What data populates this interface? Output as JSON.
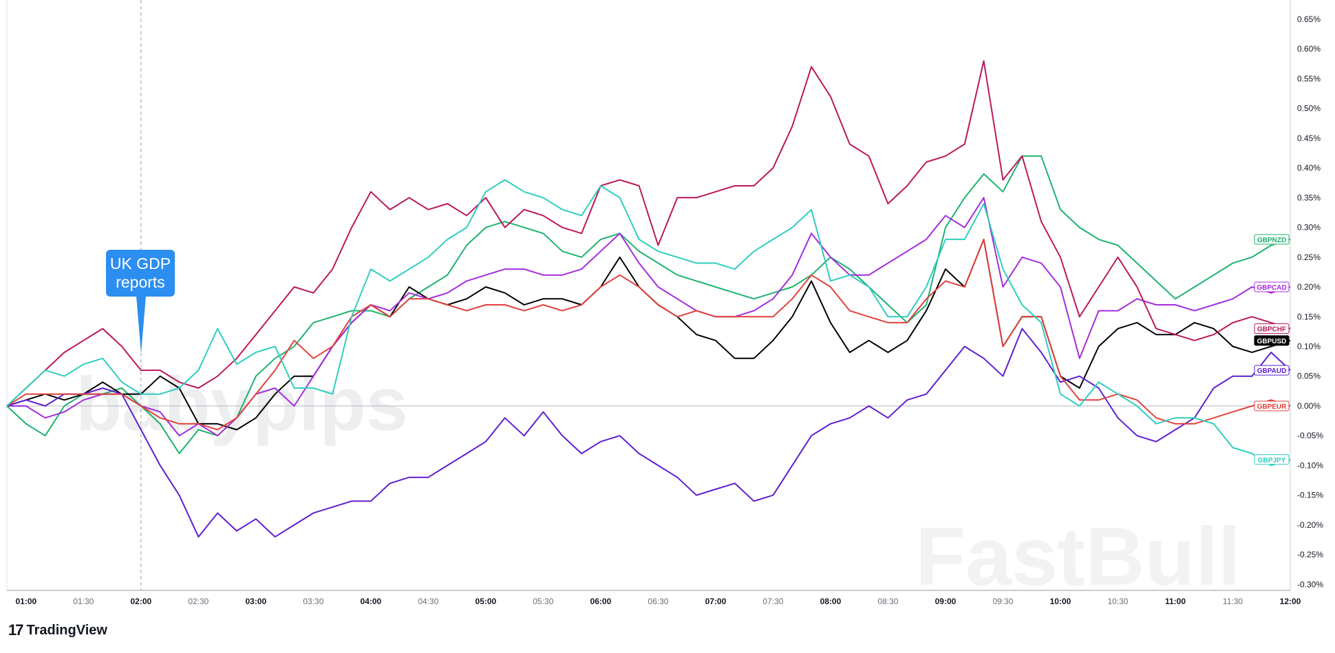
{
  "brand": {
    "name": "TradingView",
    "logo_icon": "tradingview-logo-icon"
  },
  "watermarks": {
    "top": "babypips",
    "bottom": "FastBull"
  },
  "annotation": {
    "lines": [
      "UK GDP",
      "reports"
    ],
    "color": "#2b8ef0"
  },
  "chart_data": {
    "type": "line",
    "x_ticks": [
      "01:00",
      "01:30",
      "02:00",
      "02:30",
      "03:00",
      "03:30",
      "04:00",
      "04:30",
      "05:00",
      "05:30",
      "06:00",
      "06:30",
      "07:00",
      "07:30",
      "08:00",
      "08:30",
      "09:00",
      "09:30",
      "10:00",
      "10:30",
      "11:00",
      "11:30",
      "12:00"
    ],
    "y_ticks": [
      "0.65%",
      "0.60%",
      "0.55%",
      "0.50%",
      "0.45%",
      "0.40%",
      "0.35%",
      "0.30%",
      "0.25%",
      "0.20%",
      "0.15%",
      "0.10%",
      "0.05%",
      "0.00%",
      "-0.05%",
      "-0.10%",
      "-0.15%",
      "-0.20%",
      "-0.25%",
      "-0.30%"
    ],
    "x_range": [
      "00:50",
      "12:00"
    ],
    "ylim": [
      -0.31,
      0.68
    ],
    "event_x": "02:00",
    "series": [
      {
        "name": "GBPNZD",
        "color": "#1db26e",
        "x": [
          "00:50",
          "01:00",
          "01:10",
          "01:20",
          "01:30",
          "01:40",
          "01:50",
          "02:00",
          "02:10",
          "02:20",
          "02:30",
          "02:40",
          "02:50",
          "03:00",
          "03:10",
          "03:20",
          "03:30",
          "03:40",
          "03:50",
          "04:00",
          "04:10",
          "04:20",
          "04:30",
          "04:40",
          "04:50",
          "05:00",
          "05:10",
          "05:20",
          "05:30",
          "05:40",
          "05:50",
          "06:00",
          "06:10",
          "06:20",
          "06:30",
          "06:40",
          "06:50",
          "07:00",
          "07:10",
          "07:20",
          "07:30",
          "07:40",
          "07:50",
          "08:00",
          "08:10",
          "08:20",
          "08:30",
          "08:40",
          "08:50",
          "09:00",
          "09:10",
          "09:20",
          "09:30",
          "09:40",
          "09:50",
          "10:00",
          "10:10",
          "10:20",
          "10:30",
          "10:40",
          "10:50",
          "11:00",
          "11:10",
          "11:20",
          "11:30",
          "11:40",
          "11:50",
          "12:00"
        ],
        "y": [
          0.0,
          -0.03,
          -0.05,
          0.0,
          0.02,
          0.02,
          0.03,
          0.0,
          -0.03,
          -0.08,
          -0.04,
          -0.05,
          -0.02,
          0.05,
          0.08,
          0.1,
          0.14,
          0.15,
          0.16,
          0.16,
          0.15,
          0.18,
          0.2,
          0.22,
          0.27,
          0.3,
          0.31,
          0.3,
          0.29,
          0.26,
          0.25,
          0.28,
          0.29,
          0.26,
          0.24,
          0.22,
          0.21,
          0.2,
          0.19,
          0.18,
          0.19,
          0.2,
          0.22,
          0.25,
          0.23,
          0.2,
          0.17,
          0.14,
          0.17,
          0.3,
          0.35,
          0.39,
          0.36,
          0.42,
          0.42,
          0.33,
          0.3,
          0.28,
          0.27,
          0.24,
          0.21,
          0.18,
          0.2,
          0.22,
          0.24,
          0.25,
          0.27,
          0.28
        ]
      },
      {
        "name": "GBPUSD",
        "color": "#000000",
        "x": [
          "00:50",
          "01:00",
          "01:10",
          "01:20",
          "01:30",
          "01:40",
          "01:50",
          "02:00",
          "02:10",
          "02:20",
          "02:30",
          "02:40",
          "02:50",
          "03:00",
          "03:10",
          "03:20",
          "03:30",
          "03:40",
          "03:50",
          "04:00",
          "04:10",
          "04:20",
          "04:30",
          "04:40",
          "04:50",
          "05:00",
          "05:10",
          "05:20",
          "05:30",
          "05:40",
          "05:50",
          "06:00",
          "06:10",
          "06:20",
          "06:30",
          "06:40",
          "06:50",
          "07:00",
          "07:10",
          "07:20",
          "07:30",
          "07:40",
          "07:50",
          "08:00",
          "08:10",
          "08:20",
          "08:30",
          "08:40",
          "08:50",
          "09:00",
          "09:10",
          "09:20",
          "09:30",
          "09:40",
          "09:50",
          "10:00",
          "10:10",
          "10:20",
          "10:30",
          "10:40",
          "10:50",
          "11:00",
          "11:10",
          "11:20",
          "11:30",
          "11:40",
          "11:50",
          "12:00"
        ],
        "y": [
          0.0,
          0.01,
          0.02,
          0.01,
          0.02,
          0.04,
          0.02,
          0.02,
          0.05,
          0.03,
          -0.03,
          -0.03,
          -0.04,
          -0.02,
          0.02,
          0.05,
          0.05,
          0.1,
          0.14,
          0.17,
          0.15,
          0.2,
          0.18,
          0.17,
          0.18,
          0.2,
          0.19,
          0.17,
          0.18,
          0.18,
          0.17,
          0.2,
          0.25,
          0.2,
          0.17,
          0.15,
          0.12,
          0.11,
          0.08,
          0.08,
          0.11,
          0.15,
          0.21,
          0.14,
          0.09,
          0.11,
          0.09,
          0.11,
          0.16,
          0.23,
          0.2,
          0.28,
          0.1,
          0.15,
          0.15,
          0.05,
          0.03,
          0.1,
          0.13,
          0.14,
          0.12,
          0.12,
          0.14,
          0.13,
          0.1,
          0.09,
          0.1,
          0.11
        ]
      },
      {
        "name": "GBPCAD",
        "color": "#a32cdc",
        "x": [
          "00:50",
          "01:00",
          "01:10",
          "01:20",
          "01:30",
          "01:40",
          "01:50",
          "02:00",
          "02:10",
          "02:20",
          "02:30",
          "02:40",
          "02:50",
          "03:00",
          "03:10",
          "03:20",
          "03:30",
          "03:40",
          "03:50",
          "04:00",
          "04:10",
          "04:20",
          "04:30",
          "04:40",
          "04:50",
          "05:00",
          "05:10",
          "05:20",
          "05:30",
          "05:40",
          "05:50",
          "06:00",
          "06:10",
          "06:20",
          "06:30",
          "06:40",
          "06:50",
          "07:00",
          "07:10",
          "07:20",
          "07:30",
          "07:40",
          "07:50",
          "08:00",
          "08:10",
          "08:20",
          "08:30",
          "08:40",
          "08:50",
          "09:00",
          "09:10",
          "09:20",
          "09:30",
          "09:40",
          "09:50",
          "10:00",
          "10:10",
          "10:20",
          "10:30",
          "10:40",
          "10:50",
          "11:00",
          "11:10",
          "11:20",
          "11:30",
          "11:40",
          "11:50",
          "12:00"
        ],
        "y": [
          0.0,
          0.0,
          -0.02,
          -0.01,
          0.01,
          0.02,
          0.02,
          0.0,
          -0.01,
          -0.05,
          -0.03,
          -0.05,
          -0.02,
          0.02,
          0.03,
          0.0,
          0.05,
          0.1,
          0.14,
          0.17,
          0.16,
          0.19,
          0.18,
          0.19,
          0.21,
          0.22,
          0.23,
          0.23,
          0.22,
          0.22,
          0.23,
          0.26,
          0.29,
          0.24,
          0.2,
          0.18,
          0.16,
          0.15,
          0.15,
          0.16,
          0.18,
          0.22,
          0.29,
          0.25,
          0.22,
          0.22,
          0.24,
          0.26,
          0.28,
          0.32,
          0.3,
          0.35,
          0.2,
          0.25,
          0.24,
          0.2,
          0.08,
          0.16,
          0.16,
          0.18,
          0.17,
          0.17,
          0.16,
          0.17,
          0.18,
          0.2,
          0.19,
          0.2
        ]
      },
      {
        "name": "GBPCHF",
        "color": "#b9175c",
        "x": [
          "00:50",
          "01:00",
          "01:10",
          "01:20",
          "01:30",
          "01:40",
          "01:50",
          "02:00",
          "02:10",
          "02:20",
          "02:30",
          "02:40",
          "02:50",
          "03:00",
          "03:10",
          "03:20",
          "03:30",
          "03:40",
          "03:50",
          "04:00",
          "04:10",
          "04:20",
          "04:30",
          "04:40",
          "04:50",
          "05:00",
          "05:10",
          "05:20",
          "05:30",
          "05:40",
          "05:50",
          "06:00",
          "06:10",
          "06:20",
          "06:30",
          "06:40",
          "06:50",
          "07:00",
          "07:10",
          "07:20",
          "07:30",
          "07:40",
          "07:50",
          "08:00",
          "08:10",
          "08:20",
          "08:30",
          "08:40",
          "08:50",
          "09:00",
          "09:10",
          "09:20",
          "09:30",
          "09:40",
          "09:50",
          "10:00",
          "10:10",
          "10:20",
          "10:30",
          "10:40",
          "10:50",
          "11:00",
          "11:10",
          "11:20",
          "11:30",
          "11:40",
          "11:50",
          "12:00"
        ],
        "y": [
          0.0,
          0.03,
          0.06,
          0.09,
          0.11,
          0.13,
          0.1,
          0.06,
          0.06,
          0.04,
          0.03,
          0.05,
          0.08,
          0.12,
          0.16,
          0.2,
          0.19,
          0.23,
          0.3,
          0.36,
          0.33,
          0.35,
          0.33,
          0.34,
          0.32,
          0.35,
          0.3,
          0.33,
          0.32,
          0.3,
          0.29,
          0.37,
          0.38,
          0.37,
          0.27,
          0.35,
          0.35,
          0.36,
          0.37,
          0.37,
          0.4,
          0.47,
          0.57,
          0.52,
          0.44,
          0.42,
          0.34,
          0.37,
          0.41,
          0.42,
          0.44,
          0.58,
          0.38,
          0.42,
          0.31,
          0.25,
          0.15,
          0.2,
          0.25,
          0.2,
          0.13,
          0.12,
          0.11,
          0.12,
          0.14,
          0.15,
          0.14,
          0.13
        ]
      },
      {
        "name": "GBPAUD",
        "color": "#5e1ed1",
        "x": [
          "00:50",
          "01:00",
          "01:10",
          "01:20",
          "01:30",
          "01:40",
          "01:50",
          "02:00",
          "02:10",
          "02:20",
          "02:30",
          "02:40",
          "02:50",
          "03:00",
          "03:10",
          "03:20",
          "03:30",
          "03:40",
          "03:50",
          "04:00",
          "04:10",
          "04:20",
          "04:30",
          "04:40",
          "04:50",
          "05:00",
          "05:10",
          "05:20",
          "05:30",
          "05:40",
          "05:50",
          "06:00",
          "06:10",
          "06:20",
          "06:30",
          "06:40",
          "06:50",
          "07:00",
          "07:10",
          "07:20",
          "07:30",
          "07:40",
          "07:50",
          "08:00",
          "08:10",
          "08:20",
          "08:30",
          "08:40",
          "08:50",
          "09:00",
          "09:10",
          "09:20",
          "09:30",
          "09:40",
          "09:50",
          "10:00",
          "10:10",
          "10:20",
          "10:30",
          "10:40",
          "10:50",
          "11:00",
          "11:10",
          "11:20",
          "11:30",
          "11:40",
          "11:50",
          "12:00"
        ],
        "y": [
          0.0,
          0.01,
          0.0,
          0.02,
          0.02,
          0.03,
          0.02,
          -0.04,
          -0.1,
          -0.15,
          -0.22,
          -0.18,
          -0.21,
          -0.19,
          -0.22,
          -0.2,
          -0.18,
          -0.17,
          -0.16,
          -0.16,
          -0.13,
          -0.12,
          -0.12,
          -0.1,
          -0.08,
          -0.06,
          -0.02,
          -0.05,
          -0.01,
          -0.05,
          -0.08,
          -0.06,
          -0.05,
          -0.08,
          -0.1,
          -0.12,
          -0.15,
          -0.14,
          -0.13,
          -0.16,
          -0.15,
          -0.1,
          -0.05,
          -0.03,
          -0.02,
          0.0,
          -0.02,
          0.01,
          0.02,
          0.06,
          0.1,
          0.08,
          0.05,
          0.13,
          0.09,
          0.04,
          0.05,
          0.03,
          -0.02,
          -0.05,
          -0.06,
          -0.04,
          -0.02,
          0.03,
          0.05,
          0.05,
          0.09,
          0.06
        ]
      },
      {
        "name": "GBPEUR",
        "color": "#e0413c",
        "x": [
          "00:50",
          "01:00",
          "01:10",
          "01:20",
          "01:30",
          "01:40",
          "01:50",
          "02:00",
          "02:10",
          "02:20",
          "02:30",
          "02:40",
          "02:50",
          "03:00",
          "03:10",
          "03:20",
          "03:30",
          "03:40",
          "03:50",
          "04:00",
          "04:10",
          "04:20",
          "04:30",
          "04:40",
          "04:50",
          "05:00",
          "05:10",
          "05:20",
          "05:30",
          "05:40",
          "05:50",
          "06:00",
          "06:10",
          "06:20",
          "06:30",
          "06:40",
          "06:50",
          "07:00",
          "07:10",
          "07:20",
          "07:30",
          "07:40",
          "07:50",
          "08:00",
          "08:10",
          "08:20",
          "08:30",
          "08:40",
          "08:50",
          "09:00",
          "09:10",
          "09:20",
          "09:30",
          "09:40",
          "09:50",
          "10:00",
          "10:10",
          "10:20",
          "10:30",
          "10:40",
          "10:50",
          "11:00",
          "11:10",
          "11:20",
          "11:30",
          "11:40",
          "11:50",
          "12:00"
        ],
        "y": [
          0.0,
          0.02,
          0.02,
          0.02,
          0.02,
          0.02,
          0.02,
          0.0,
          -0.02,
          -0.03,
          -0.03,
          -0.04,
          -0.02,
          0.02,
          0.06,
          0.11,
          0.08,
          0.1,
          0.15,
          0.17,
          0.15,
          0.18,
          0.18,
          0.17,
          0.16,
          0.17,
          0.17,
          0.16,
          0.17,
          0.16,
          0.17,
          0.2,
          0.22,
          0.2,
          0.17,
          0.15,
          0.16,
          0.15,
          0.15,
          0.15,
          0.15,
          0.18,
          0.22,
          0.2,
          0.16,
          0.15,
          0.14,
          0.14,
          0.18,
          0.21,
          0.2,
          0.28,
          0.1,
          0.15,
          0.15,
          0.05,
          0.01,
          0.01,
          0.02,
          0.01,
          -0.02,
          -0.03,
          -0.03,
          -0.02,
          -0.01,
          0.0,
          0.01,
          0.0
        ]
      },
      {
        "name": "GBPJPY",
        "color": "#2ecdc0",
        "x": [
          "00:50",
          "01:00",
          "01:10",
          "01:20",
          "01:30",
          "01:40",
          "01:50",
          "02:00",
          "02:10",
          "02:20",
          "02:30",
          "02:40",
          "02:50",
          "03:00",
          "03:10",
          "03:20",
          "03:30",
          "03:40",
          "03:50",
          "04:00",
          "04:10",
          "04:20",
          "04:30",
          "04:40",
          "04:50",
          "05:00",
          "05:10",
          "05:20",
          "05:30",
          "05:40",
          "05:50",
          "06:00",
          "06:10",
          "06:20",
          "06:30",
          "06:40",
          "06:50",
          "07:00",
          "07:10",
          "07:20",
          "07:30",
          "07:40",
          "07:50",
          "08:00",
          "08:10",
          "08:20",
          "08:30",
          "08:40",
          "08:50",
          "09:00",
          "09:10",
          "09:20",
          "09:30",
          "09:40",
          "09:50",
          "10:00",
          "10:10",
          "10:20",
          "10:30",
          "10:40",
          "10:50",
          "11:00",
          "11:10",
          "11:20",
          "11:30",
          "11:40",
          "11:50",
          "12:00"
        ],
        "y": [
          0.0,
          0.03,
          0.06,
          0.05,
          0.07,
          0.08,
          0.04,
          0.02,
          0.02,
          0.03,
          0.06,
          0.13,
          0.07,
          0.09,
          0.1,
          0.03,
          0.03,
          0.02,
          0.15,
          0.23,
          0.21,
          0.23,
          0.25,
          0.28,
          0.3,
          0.36,
          0.38,
          0.36,
          0.35,
          0.33,
          0.32,
          0.37,
          0.35,
          0.28,
          0.26,
          0.25,
          0.24,
          0.24,
          0.23,
          0.26,
          0.28,
          0.3,
          0.33,
          0.21,
          0.22,
          0.2,
          0.15,
          0.15,
          0.2,
          0.28,
          0.28,
          0.34,
          0.23,
          0.17,
          0.14,
          0.02,
          0.0,
          0.04,
          0.02,
          0.0,
          -0.03,
          -0.02,
          -0.02,
          -0.03,
          -0.07,
          -0.08,
          -0.1,
          -0.09
        ]
      }
    ]
  }
}
